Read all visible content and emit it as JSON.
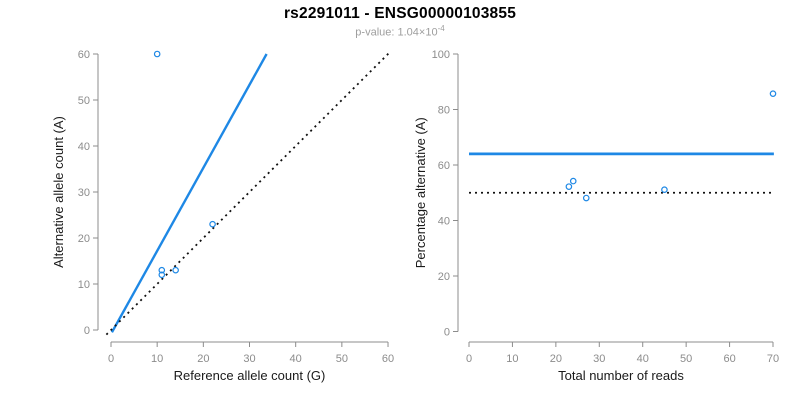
{
  "header": {
    "title": "rs2291011 - ENSG00000103855",
    "subtitle_prefix": "p-value: 1.04×10",
    "subtitle_exponent": "-4"
  },
  "colors": {
    "accent_blue": "#1E88E5",
    "line_black": "#111111",
    "axis": "#8c8c8c",
    "tick_text": "#8c8c8c",
    "label_text": "#1a1a1a",
    "title_text": "#000000",
    "subtitle_text": "#9e9e9e",
    "background": "#ffffff"
  },
  "chart_data": [
    {
      "type": "scatter",
      "xlabel": "Reference allele count (G)",
      "ylabel": "Alternative allele count (A)",
      "xlim": [
        0,
        60
      ],
      "ylim": [
        0,
        60
      ],
      "xticks": [
        0,
        10,
        20,
        30,
        40,
        50,
        60
      ],
      "yticks": [
        0,
        10,
        20,
        30,
        40,
        50,
        60
      ],
      "grid": false,
      "legend": "none",
      "points": [
        [
          10,
          60
        ],
        [
          11,
          12
        ],
        [
          11,
          13
        ],
        [
          14,
          13
        ],
        [
          22,
          23
        ]
      ],
      "lines": [
        {
          "name": "fit",
          "style": "solid",
          "color_key": "accent_blue",
          "width": 2.4,
          "x1": 0.2,
          "y1": -0.5,
          "x2": 33.7,
          "y2": 60
        },
        {
          "name": "identity",
          "style": "dotted",
          "color_key": "line_black",
          "width": 1.8,
          "x1": -1,
          "y1": -1,
          "x2": 60.3,
          "y2": 60.3
        }
      ]
    },
    {
      "type": "scatter",
      "xlabel": "Total number of reads",
      "ylabel": "Percentage alternative (A)",
      "xlim": [
        0,
        70
      ],
      "ylim": [
        0,
        100
      ],
      "xticks": [
        0,
        10,
        20,
        30,
        40,
        50,
        60,
        70
      ],
      "yticks": [
        0,
        20,
        40,
        60,
        80,
        100
      ],
      "grid": false,
      "legend": "none",
      "points": [
        [
          23,
          52.2
        ],
        [
          24,
          54.2
        ],
        [
          27,
          48.1
        ],
        [
          45,
          51.1
        ],
        [
          70,
          85.7
        ]
      ],
      "lines": [
        {
          "name": "mean-percentage",
          "style": "solid",
          "color_key": "accent_blue",
          "width": 2.8,
          "x1": 0,
          "y1": 64,
          "x2": 70.2,
          "y2": 64
        },
        {
          "name": "expected-50pct",
          "style": "dotted",
          "color_key": "line_black",
          "width": 1.8,
          "x1": 0,
          "y1": 50,
          "x2": 70.2,
          "y2": 50
        }
      ]
    }
  ]
}
